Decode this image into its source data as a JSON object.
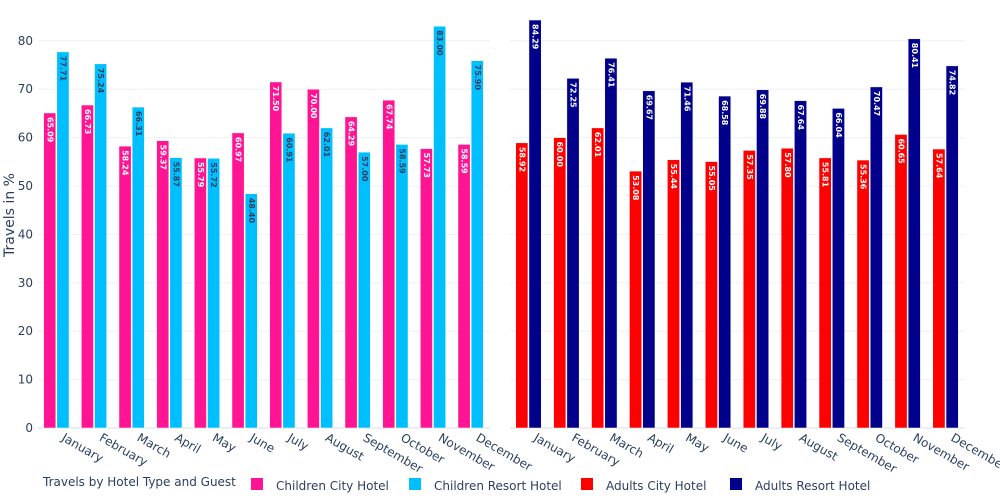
{
  "chart_data": [
    {
      "type": "bar",
      "panel": "left",
      "categories": [
        "January",
        "February",
        "March",
        "April",
        "May",
        "June",
        "July",
        "August",
        "September",
        "October",
        "November",
        "December"
      ],
      "ylabel": "Travels in %",
      "ylim": [
        0,
        85
      ],
      "yticks": [
        0,
        10,
        20,
        30,
        40,
        50,
        60,
        70,
        80
      ],
      "grid": true,
      "series": [
        {
          "name": "Children City Hotel",
          "color": "#ff1493",
          "values": [
            65.09,
            66.73,
            58.24,
            59.37,
            55.79,
            60.97,
            71.5,
            70.0,
            64.29,
            67.74,
            57.73,
            58.59
          ]
        },
        {
          "name": "Children Resort Hotel",
          "color": "#00bfff",
          "values": [
            77.71,
            75.24,
            66.31,
            55.87,
            55.72,
            48.4,
            60.91,
            62.01,
            57.0,
            58.59,
            83.0,
            75.9
          ]
        }
      ]
    },
    {
      "type": "bar",
      "panel": "right",
      "categories": [
        "January",
        "February",
        "March",
        "April",
        "May",
        "June",
        "July",
        "August",
        "September",
        "October",
        "November",
        "December"
      ],
      "ylim": [
        0,
        85
      ],
      "grid": true,
      "series": [
        {
          "name": "Adults City Hotel",
          "color": "#ff0000",
          "values": [
            58.92,
            60.0,
            62.01,
            53.08,
            55.44,
            55.05,
            57.35,
            57.8,
            55.81,
            55.36,
            60.65,
            57.64
          ]
        },
        {
          "name": "Adults Resort Hotel",
          "color": "#00008b",
          "values": [
            84.29,
            72.25,
            76.41,
            69.67,
            71.46,
            68.58,
            69.88,
            67.64,
            66.04,
            70.47,
            80.41,
            74.82
          ]
        }
      ]
    }
  ],
  "legend": {
    "title": "Travels by Hotel Type and Guest",
    "placement": "bottom",
    "items": [
      {
        "label": "Children City Hotel",
        "color": "#ff1493"
      },
      {
        "label": "Children Resort Hotel",
        "color": "#00bfff"
      },
      {
        "label": "Adults City Hotel",
        "color": "#ff0000"
      },
      {
        "label": "Adults Resort Hotel",
        "color": "#00008b"
      }
    ]
  }
}
